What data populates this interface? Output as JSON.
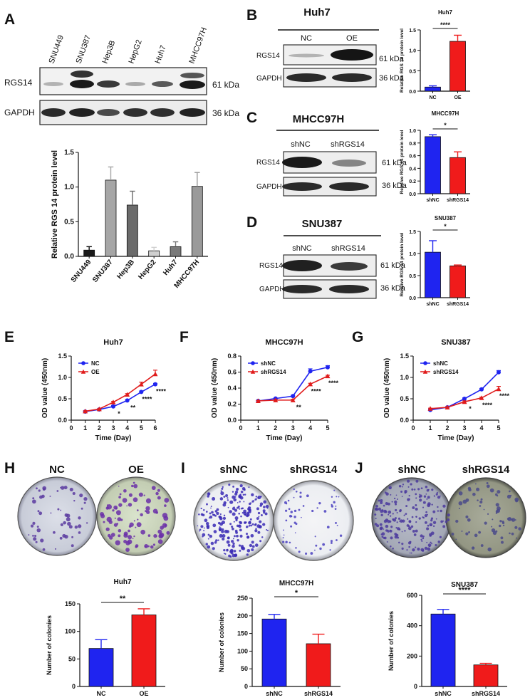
{
  "panel_letters": [
    "A",
    "B",
    "C",
    "D",
    "E",
    "F",
    "G",
    "H",
    "I",
    "J"
  ],
  "blot_labels": {
    "rgs14": "RGS14",
    "gapdh": "GAPDH",
    "kda61": "61 kDa",
    "kda36": "36 kDa"
  },
  "panelA": {
    "lanes": [
      "SNU449",
      "SNU387",
      "Hep3B",
      "HepG2",
      "Huh7",
      "MHCC97H"
    ]
  },
  "panelB": {
    "title": "Huh7",
    "lanes": [
      "NC",
      "OE"
    ]
  },
  "panelC": {
    "title": "MHCC97H",
    "lanes": [
      "shNC",
      "shRGS14"
    ]
  },
  "panelD": {
    "title": "SNU387",
    "lanes": [
      "shNC",
      "shRGS14"
    ]
  },
  "dishes": {
    "H": {
      "labels": [
        "NC",
        "OE"
      ]
    },
    "I": {
      "labels": [
        "shNC",
        "shRGS14"
      ]
    },
    "J": {
      "labels": [
        "shNC",
        "shRGS14"
      ]
    }
  },
  "chart_data": [
    {
      "id": "A",
      "type": "bar",
      "title": "",
      "xlabel": "",
      "ylabel": "Relative RGS 14 protein level",
      "categories": [
        "SNU449",
        "SNU387",
        "Hep3B",
        "HepG2",
        "Huh7",
        "MHCC97H"
      ],
      "values": [
        0.09,
        1.1,
        0.74,
        0.08,
        0.14,
        1.01
      ],
      "errors": [
        0.05,
        0.19,
        0.2,
        0.05,
        0.07,
        0.2
      ],
      "colors": [
        "#1a1a1a",
        "#a6a6a6",
        "#6b6b6b",
        "#d0d0d0",
        "#7a7a7a",
        "#9a9a9a"
      ],
      "ylim": [
        0,
        1.5
      ],
      "yticks": [
        "0.0",
        "0.5",
        "1.0",
        "1.5"
      ]
    },
    {
      "id": "B",
      "type": "bar",
      "title": "Huh7",
      "xlabel": "",
      "ylabel": "Relative RGS 14 protein level",
      "categories": [
        "NC",
        "OE"
      ],
      "values": [
        0.1,
        1.22
      ],
      "errors": [
        0.03,
        0.15
      ],
      "colors": [
        "#1f24f0",
        "#f01b1b"
      ],
      "ylim": [
        0,
        1.5
      ],
      "yticks": [
        "0.0",
        "0.5",
        "1.0",
        "1.5"
      ],
      "significance": "****"
    },
    {
      "id": "C",
      "type": "bar",
      "title": "MHCC97H",
      "xlabel": "",
      "ylabel": "Relative RGS 14 protein level",
      "categories": [
        "shNC",
        "shRGS14"
      ],
      "values": [
        0.9,
        0.57
      ],
      "errors": [
        0.03,
        0.09
      ],
      "colors": [
        "#1f24f0",
        "#f01b1b"
      ],
      "ylim": [
        0,
        1.0
      ],
      "yticks": [
        "0.0",
        "0.2",
        "0.4",
        "0.6",
        "0.8",
        "1.0"
      ],
      "significance": "*"
    },
    {
      "id": "D",
      "type": "bar",
      "title": "SNU387",
      "xlabel": "",
      "ylabel": "Relative RGS 14 protein level",
      "categories": [
        "shNC",
        "shRGS14"
      ],
      "values": [
        1.03,
        0.72
      ],
      "errors": [
        0.26,
        0.02
      ],
      "colors": [
        "#1f24f0",
        "#f01b1b"
      ],
      "ylim": [
        0,
        1.5
      ],
      "yticks": [
        "0.0",
        "0.5",
        "1.0",
        "1.5"
      ],
      "significance": "*"
    },
    {
      "id": "E",
      "type": "line",
      "title": "Huh7",
      "xlabel": "Time (Day)",
      "ylabel": "OD value (450nm)",
      "x": [
        1,
        2,
        3,
        4,
        5,
        6
      ],
      "xlim": [
        0,
        6
      ],
      "xticks": [
        "0",
        "1",
        "2",
        "3",
        "4",
        "5",
        "6"
      ],
      "ylim": [
        0,
        1.5
      ],
      "yticks": [
        "0.0",
        "0.5",
        "1.0",
        "1.5"
      ],
      "series": [
        {
          "name": "NC",
          "color": "#1f24f0",
          "marker": "circle",
          "values": [
            0.2,
            0.25,
            0.32,
            0.46,
            0.66,
            0.84
          ],
          "errors": [
            0.01,
            0.01,
            0.02,
            0.02,
            0.02,
            0.02
          ]
        },
        {
          "name": "OE",
          "color": "#e01b1b",
          "marker": "triangle",
          "values": [
            0.21,
            0.26,
            0.42,
            0.6,
            0.84,
            1.08
          ],
          "errors": [
            0.01,
            0.01,
            0.02,
            0.02,
            0.05,
            0.09
          ]
        }
      ],
      "annotations": [
        {
          "x": 3,
          "text": "*"
        },
        {
          "x": 4,
          "text": "**"
        },
        {
          "x": 5,
          "text": "****"
        },
        {
          "x": 6,
          "text": "****"
        }
      ],
      "legend": "top-left"
    },
    {
      "id": "F",
      "type": "line",
      "title": "MHCC97H",
      "xlabel": "Time (Day)",
      "ylabel": "OD value (450nm)",
      "x": [
        1,
        2,
        3,
        4,
        5
      ],
      "xlim": [
        0,
        5
      ],
      "xticks": [
        "0",
        "1",
        "2",
        "3",
        "4",
        "5"
      ],
      "ylim": [
        0,
        0.8
      ],
      "yticks": [
        "0.0",
        "0.2",
        "0.4",
        "0.6",
        "0.8"
      ],
      "series": [
        {
          "name": "shNC",
          "color": "#1f24f0",
          "marker": "circle",
          "values": [
            0.24,
            0.27,
            0.3,
            0.61,
            0.66
          ],
          "errors": [
            0.005,
            0.005,
            0.01,
            0.03,
            0.02
          ]
        },
        {
          "name": "shRGS14",
          "color": "#e01b1b",
          "marker": "triangle",
          "values": [
            0.24,
            0.25,
            0.25,
            0.45,
            0.55
          ],
          "errors": [
            0.005,
            0.005,
            0.01,
            0.01,
            0.01
          ]
        }
      ],
      "annotations": [
        {
          "x": 3,
          "text": "**"
        },
        {
          "x": 4,
          "text": "****"
        },
        {
          "x": 5,
          "text": "****"
        }
      ],
      "legend": "top-left"
    },
    {
      "id": "G",
      "type": "line",
      "title": "SNU387",
      "xlabel": "Time (Day)",
      "ylabel": "OD value (450nm)",
      "x": [
        1,
        2,
        3,
        4,
        5
      ],
      "xlim": [
        0,
        5
      ],
      "xticks": [
        "0",
        "1",
        "2",
        "3",
        "4",
        "5"
      ],
      "ylim": [
        0,
        1.5
      ],
      "yticks": [
        "0.0",
        "0.5",
        "1.0",
        "1.5"
      ],
      "series": [
        {
          "name": "shNC",
          "color": "#1f24f0",
          "marker": "circle",
          "values": [
            0.24,
            0.3,
            0.5,
            0.72,
            1.12
          ],
          "errors": [
            0.01,
            0.01,
            0.02,
            0.02,
            0.04
          ]
        },
        {
          "name": "shRGS14",
          "color": "#e01b1b",
          "marker": "triangle",
          "values": [
            0.27,
            0.3,
            0.43,
            0.52,
            0.73
          ],
          "errors": [
            0.01,
            0.01,
            0.02,
            0.02,
            0.06
          ]
        }
      ],
      "annotations": [
        {
          "x": 3,
          "text": "*"
        },
        {
          "x": 4,
          "text": "****"
        },
        {
          "x": 5,
          "text": "****"
        }
      ],
      "legend": "top-left"
    },
    {
      "id": "H",
      "type": "bar",
      "title": "Huh7",
      "xlabel": "",
      "ylabel": "Number of colonies",
      "categories": [
        "NC",
        "OE"
      ],
      "values": [
        69,
        130
      ],
      "errors": [
        16,
        11
      ],
      "colors": [
        "#1f24f0",
        "#f01b1b"
      ],
      "ylim": [
        0,
        150
      ],
      "yticks": [
        "0",
        "50",
        "100",
        "150"
      ],
      "significance": "**"
    },
    {
      "id": "I",
      "type": "bar",
      "title": "MHCC97H",
      "xlabel": "",
      "ylabel": "Number of colonies",
      "categories": [
        "shNC",
        "shRGS14"
      ],
      "values": [
        191,
        121
      ],
      "errors": [
        13,
        27
      ],
      "colors": [
        "#1f24f0",
        "#f01b1b"
      ],
      "ylim": [
        0,
        250
      ],
      "yticks": [
        "0",
        "50",
        "100",
        "150",
        "200",
        "250"
      ],
      "significance": "*"
    },
    {
      "id": "J",
      "type": "bar",
      "title": "SNU387",
      "xlabel": "",
      "ylabel": "Number of colonies",
      "categories": [
        "shNC",
        "shRGS14"
      ],
      "values": [
        477,
        142
      ],
      "errors": [
        30,
        10
      ],
      "colors": [
        "#1f24f0",
        "#f01b1b"
      ],
      "ylim": [
        0,
        600
      ],
      "yticks": [
        "0",
        "200",
        "400",
        "600"
      ],
      "significance": "****"
    }
  ]
}
